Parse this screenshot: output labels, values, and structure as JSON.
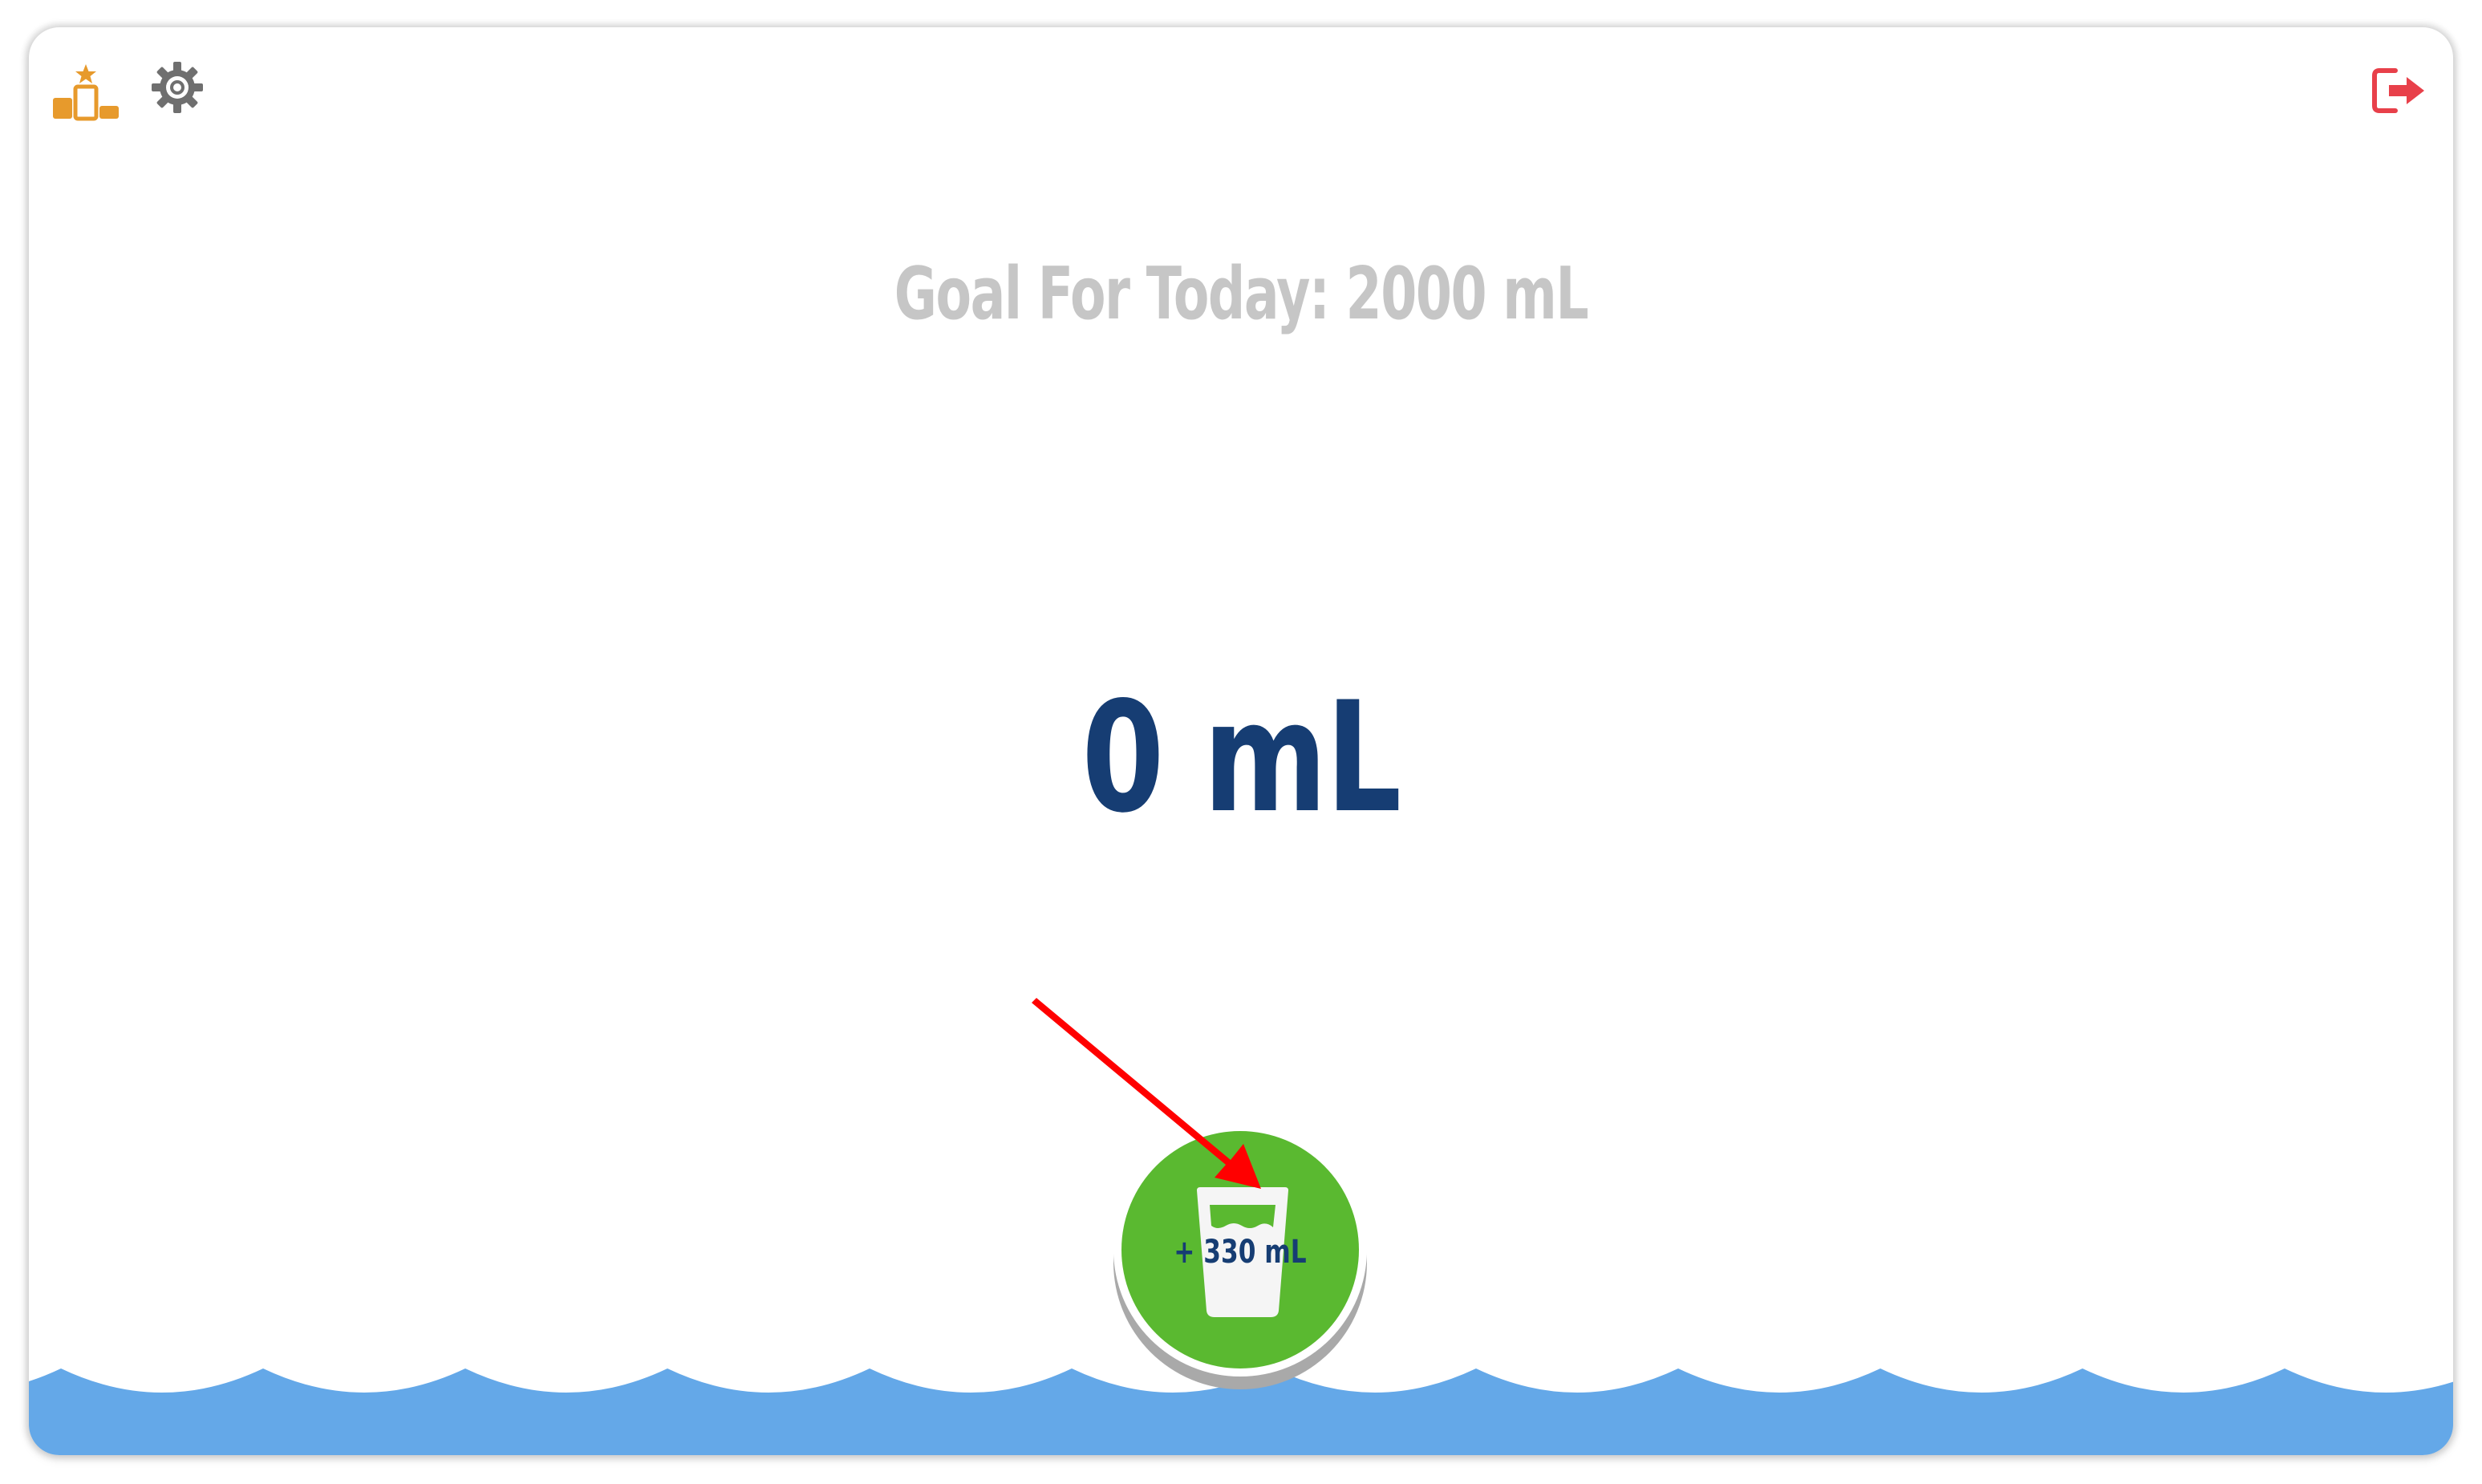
{
  "header": {
    "leaderboard_icon": "leaderboard-podium-icon",
    "settings_icon": "gear-icon",
    "logout_icon": "logout-icon"
  },
  "goal": {
    "label": "Goal For Today: 2000 mL"
  },
  "intake": {
    "current": "0 mL"
  },
  "add_button": {
    "label": "+ 330 mL",
    "icon": "cup-icon"
  },
  "colors": {
    "goal_text": "#c6c6c6",
    "amount_text": "#163d73",
    "button_green": "#5ab930",
    "water_blue": "#64a8e8",
    "leaderboard_orange": "#e79a2c",
    "logout_red": "#e8404a",
    "annotation_red": "#ff0000"
  }
}
